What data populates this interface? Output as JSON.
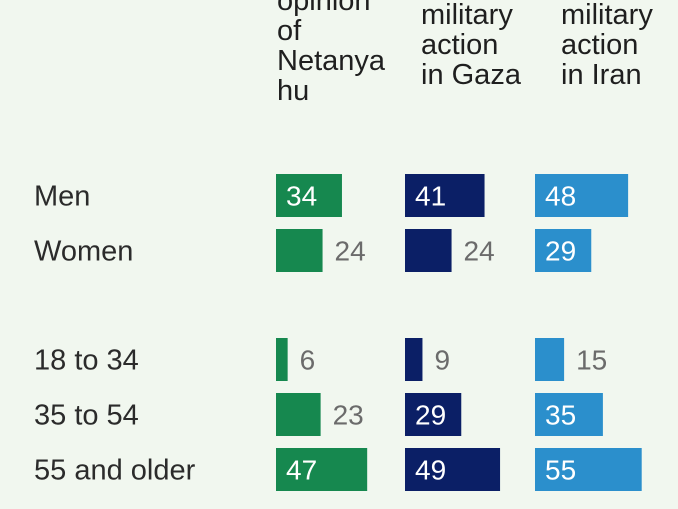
{
  "colors": {
    "green": "#16884f",
    "navy": "#0b1f66",
    "blue": "#2b8fcc",
    "background": "#f1f7ef"
  },
  "chart_data": {
    "type": "bar",
    "orientation": "horizontal",
    "columns": [
      {
        "header": "opinion\nof\nNetanya\nhu",
        "color": "#16884f"
      },
      {
        "header": "military\naction\nin Gaza",
        "color": "#0b1f66"
      },
      {
        "header": "military\naction\nin Iran",
        "color": "#2b8fcc"
      }
    ],
    "groups": [
      {
        "rows": [
          "Men",
          "Women"
        ]
      },
      {
        "rows": [
          "18 to 34",
          "35 to 54",
          "55 and older"
        ]
      }
    ],
    "categories": [
      "Men",
      "Women",
      "18 to 34",
      "35 to 54",
      "55 and older"
    ],
    "series": [
      {
        "values": [
          34,
          24,
          6,
          23,
          47
        ]
      },
      {
        "values": [
          41,
          24,
          9,
          29,
          49
        ]
      },
      {
        "values": [
          48,
          29,
          15,
          35,
          55
        ]
      }
    ]
  }
}
